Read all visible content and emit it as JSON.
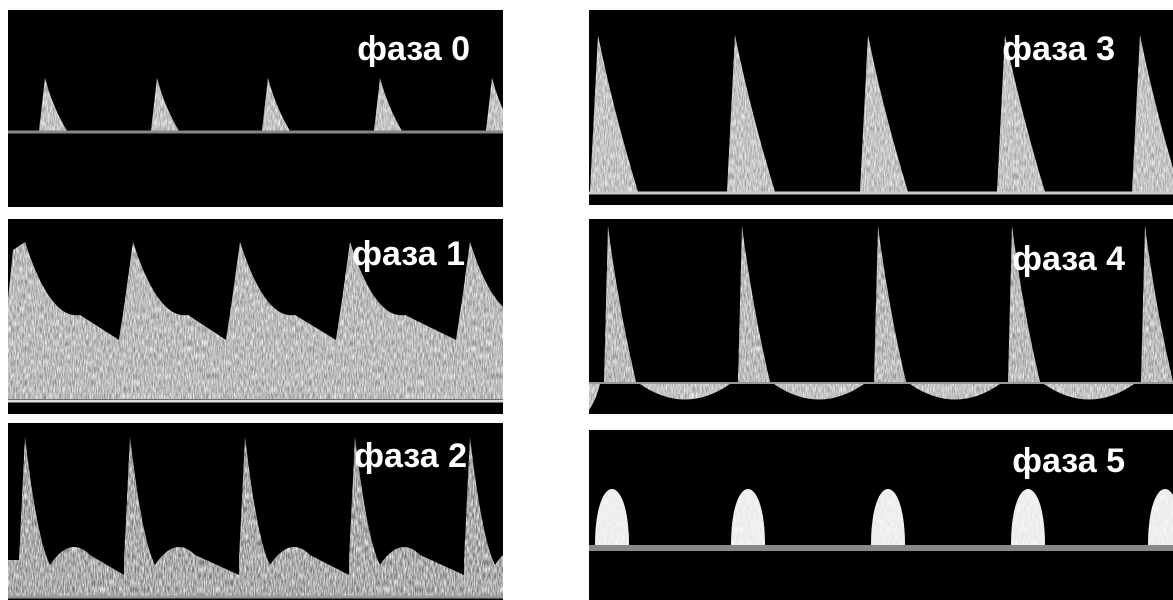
{
  "panels": [
    {
      "label": "фаза 0"
    },
    {
      "label": "фаза 1"
    },
    {
      "label": "фаза 2"
    },
    {
      "label": "фаза 3"
    },
    {
      "label": "фаза 4"
    },
    {
      "label": "фаза 5"
    }
  ]
}
